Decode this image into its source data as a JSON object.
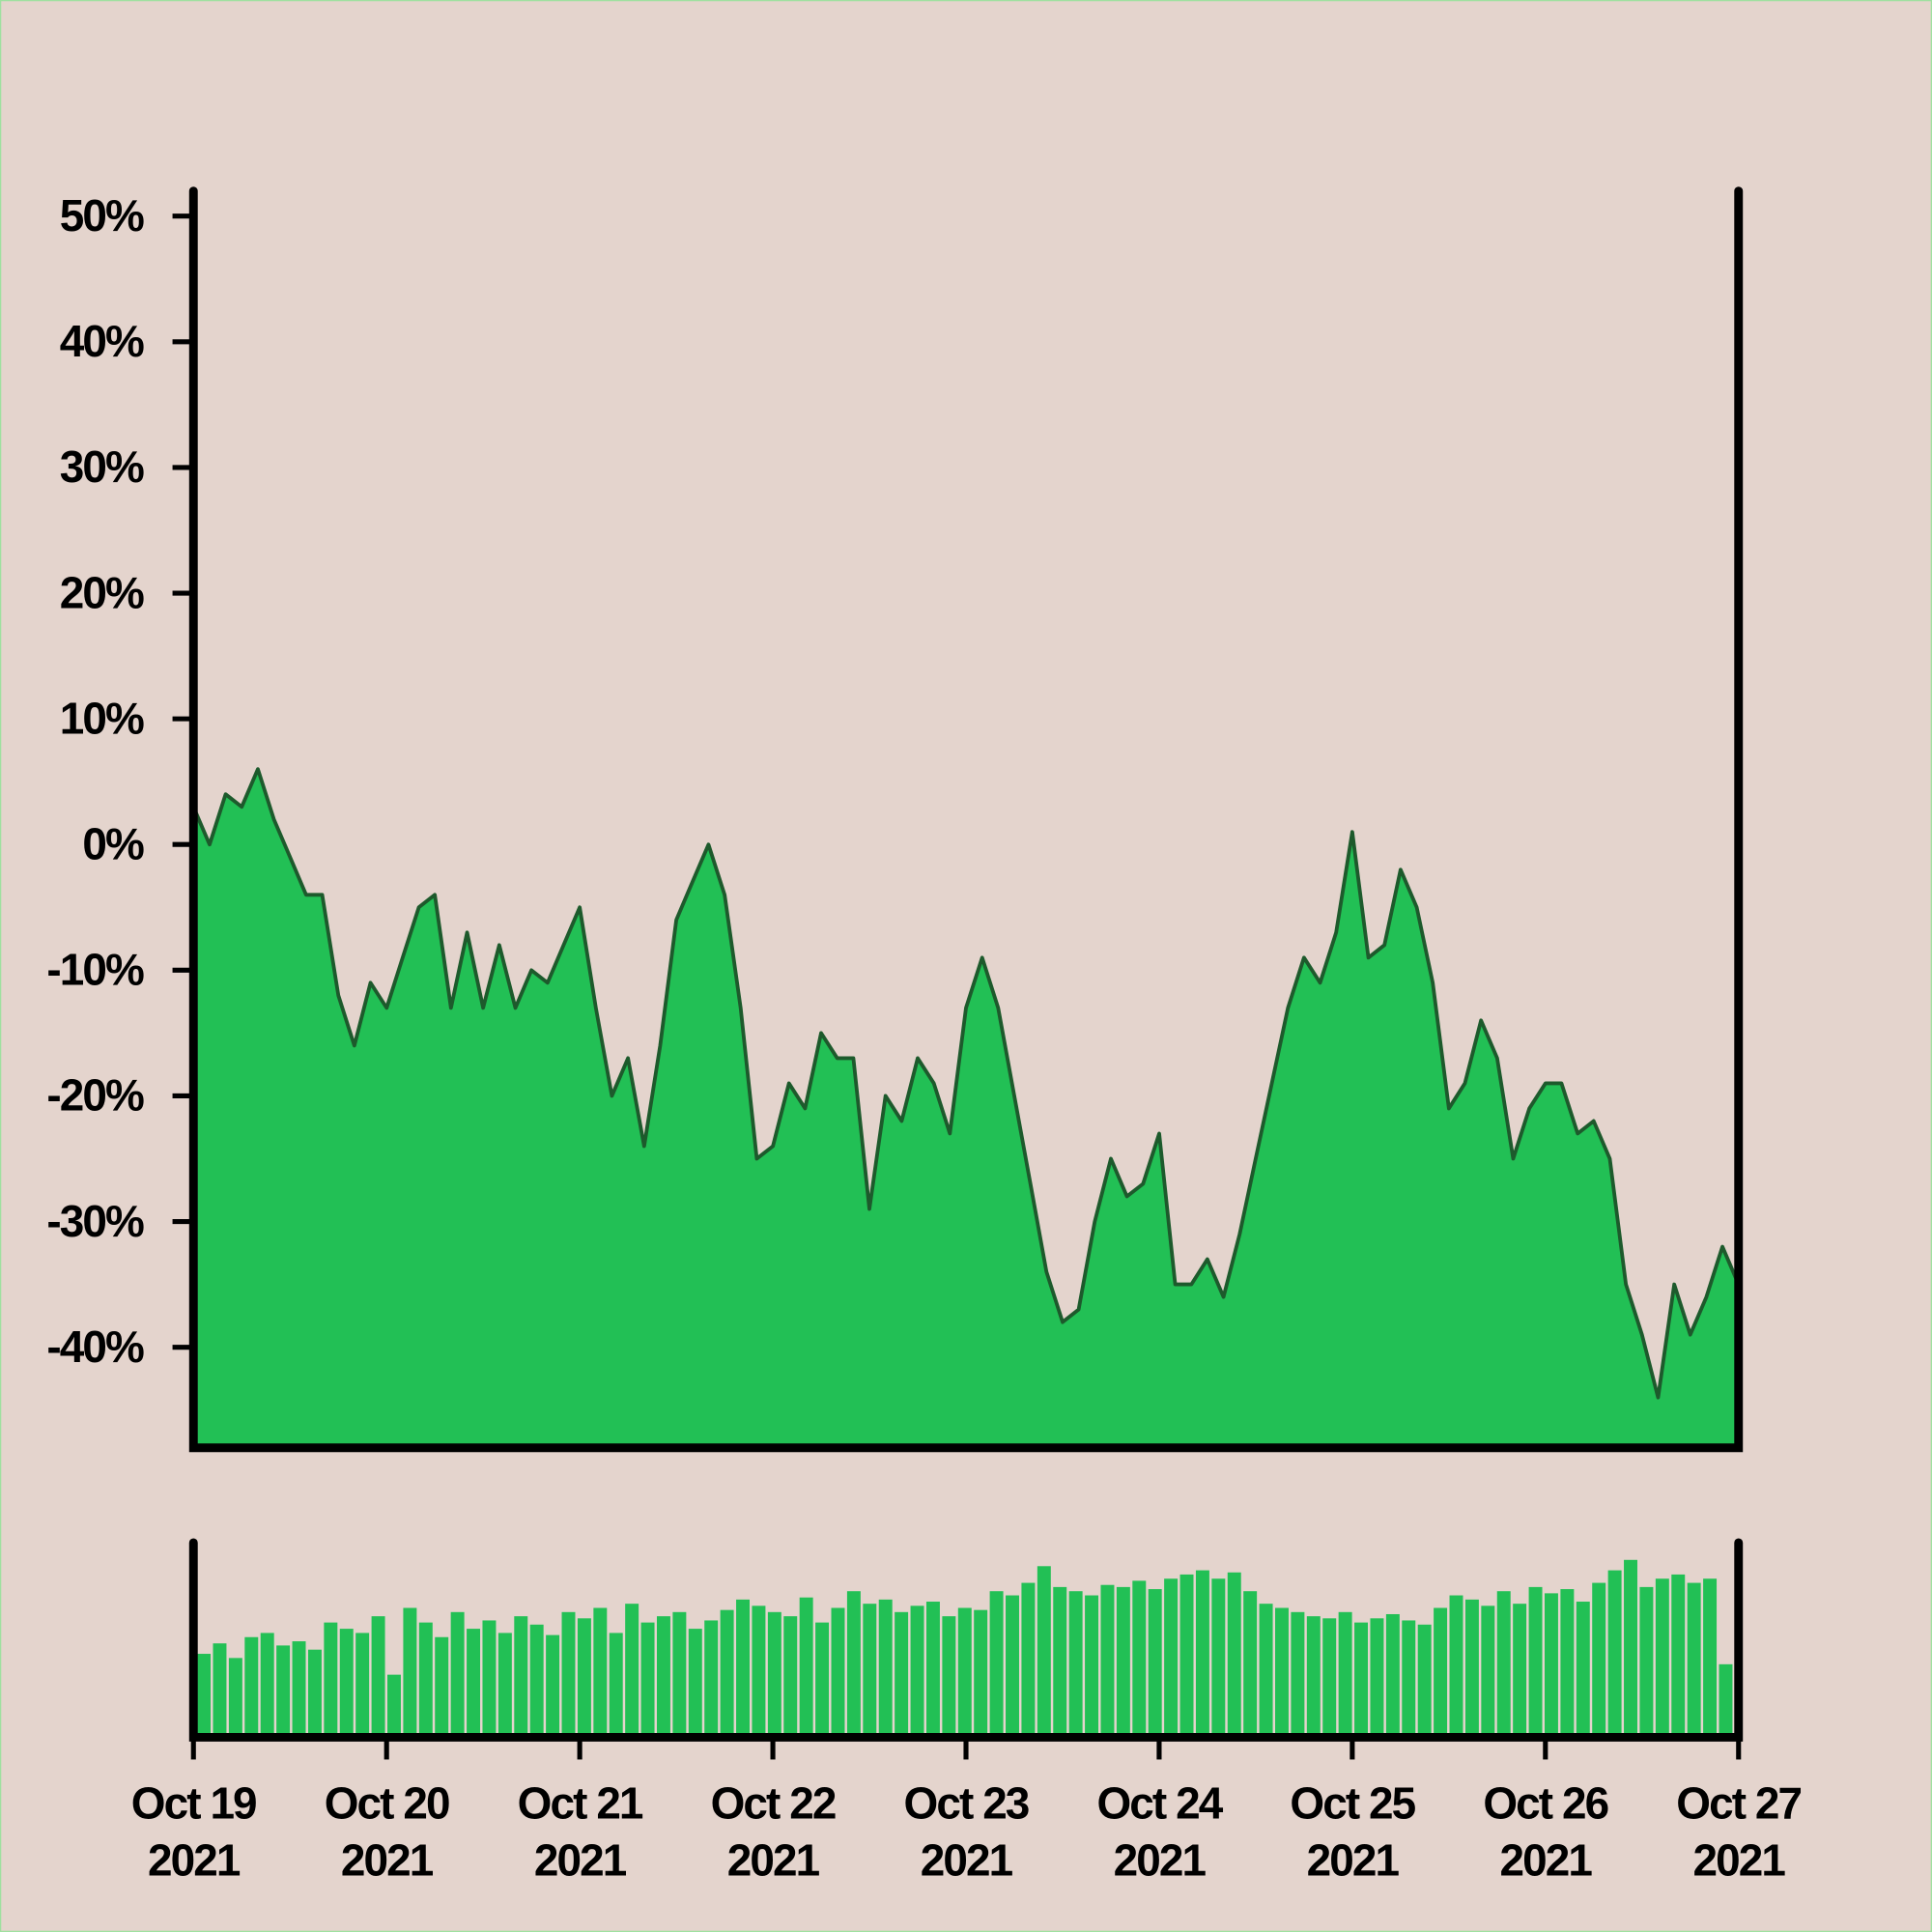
{
  "chart_data": [
    {
      "type": "area",
      "xlim": [
        "2021-10-19",
        "2021-10-27"
      ],
      "xticks": [
        {
          "value": "2021-10-19",
          "label": [
            "Oct 19",
            "2021"
          ]
        },
        {
          "value": "2021-10-20",
          "label": [
            "Oct 20",
            "2021"
          ]
        },
        {
          "value": "2021-10-21",
          "label": [
            "Oct 21",
            "2021"
          ]
        },
        {
          "value": "2021-10-22",
          "label": [
            "Oct 22",
            "2021"
          ]
        },
        {
          "value": "2021-10-23",
          "label": [
            "Oct 23",
            "2021"
          ]
        },
        {
          "value": "2021-10-24",
          "label": [
            "Oct 24",
            "2021"
          ]
        },
        {
          "value": "2021-10-25",
          "label": [
            "Oct 25",
            "2021"
          ]
        },
        {
          "value": "2021-10-26",
          "label": [
            "Oct 26",
            "2021"
          ]
        },
        {
          "value": "2021-10-27",
          "label": [
            "Oct 27",
            "2021"
          ]
        }
      ],
      "ylim": [
        -48,
        52
      ],
      "yticks": [
        {
          "value": -40,
          "label": "-40%"
        },
        {
          "value": -30,
          "label": "-30%"
        },
        {
          "value": -20,
          "label": "-20%"
        },
        {
          "value": -10,
          "label": "-10%"
        },
        {
          "value": 0,
          "label": "0%"
        },
        {
          "value": 10,
          "label": "10%"
        },
        {
          "value": 20,
          "label": "20%"
        },
        {
          "value": 30,
          "label": "30%"
        },
        {
          "value": 40,
          "label": "40%"
        },
        {
          "value": 50,
          "label": "50%"
        }
      ],
      "series": [
        {
          "color": "#22c055",
          "line_color": "#1d5a2c",
          "values": [
            3,
            0,
            4,
            3,
            6,
            2,
            -1,
            -4,
            -4,
            -12,
            -16,
            -11,
            -13,
            -9,
            -5,
            -4,
            -13,
            -7,
            -13,
            -8,
            -13,
            -10,
            -11,
            -8,
            -5,
            -13,
            -20,
            -17,
            -24,
            -16,
            -6,
            -3,
            0,
            -4,
            -13,
            -25,
            -24,
            -19,
            -21,
            -15,
            -17,
            -17,
            -29,
            -20,
            -22,
            -17,
            -19,
            -23,
            -13,
            -9,
            -13,
            -20,
            -27,
            -34,
            -38,
            -37,
            -30,
            -25,
            -28,
            -27,
            -23,
            -35,
            -35,
            -33,
            -36,
            -31,
            -25,
            -19,
            -13,
            -9,
            -11,
            -7,
            1,
            -9,
            -8,
            -2,
            -5,
            -11,
            -21,
            -19,
            -14,
            -17,
            -25,
            -21,
            -19,
            -19,
            -23,
            -22,
            -25,
            -35,
            -39,
            -44,
            -35,
            -39,
            -36,
            -32,
            -35
          ]
        }
      ]
    },
    {
      "type": "bar",
      "color": "#22c055",
      "values": [
        40,
        45,
        38,
        48,
        50,
        44,
        46,
        42,
        55,
        52,
        50,
        58,
        30,
        62,
        55,
        48,
        60,
        52,
        56,
        50,
        58,
        54,
        49,
        60,
        57,
        62,
        50,
        64,
        55,
        58,
        60,
        52,
        56,
        61,
        66,
        63,
        60,
        58,
        67,
        55,
        62,
        70,
        64,
        66,
        60,
        63,
        65,
        58,
        62,
        61,
        70,
        68,
        74,
        82,
        72,
        70,
        68,
        73,
        72,
        75,
        71,
        76,
        78,
        80,
        76,
        79,
        70,
        64,
        62,
        60,
        58,
        57,
        60,
        55,
        57,
        59,
        56,
        54,
        62,
        68,
        66,
        63,
        70,
        64,
        72,
        69,
        71,
        65,
        74,
        80,
        85,
        72,
        76,
        78,
        74,
        76,
        35
      ]
    }
  ]
}
